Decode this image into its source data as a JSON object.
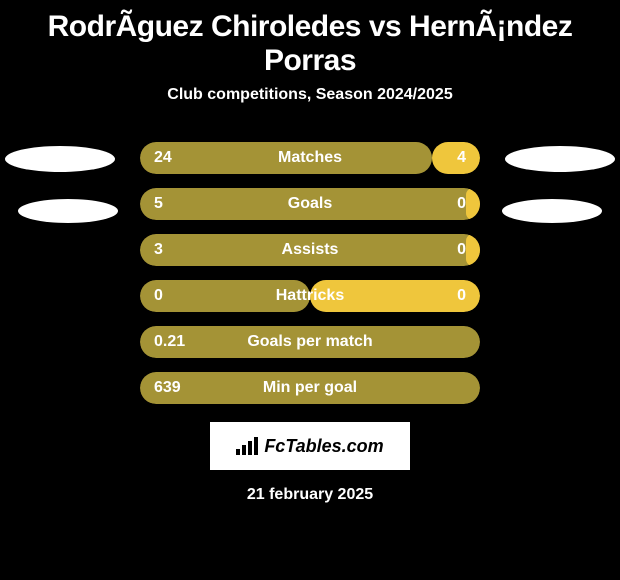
{
  "title": "RodrÃ­guez Chiroledes vs HernÃ¡ndez Porras",
  "subtitle": "Club competitions, Season 2024/2025",
  "colors": {
    "left_bar": "#a49336",
    "right_bar": "#efc63c",
    "background": "#000000",
    "ellipse": "#ffffff",
    "text": "#ffffff"
  },
  "stats": [
    {
      "label": "Matches",
      "left_val": "24",
      "right_val": "4",
      "left_pct": 86,
      "right_pct": 14
    },
    {
      "label": "Goals",
      "left_val": "5",
      "right_val": "0",
      "left_pct": 100,
      "right_pct": 4
    },
    {
      "label": "Assists",
      "left_val": "3",
      "right_val": "0",
      "left_pct": 100,
      "right_pct": 4
    },
    {
      "label": "Hattricks",
      "left_val": "0",
      "right_val": "0",
      "left_pct": 50,
      "right_pct": 50
    },
    {
      "label": "Goals per match",
      "left_val": "0.21",
      "right_val": "",
      "left_pct": 100,
      "right_pct": 0
    },
    {
      "label": "Min per goal",
      "left_val": "639",
      "right_val": "",
      "left_pct": 100,
      "right_pct": 0
    }
  ],
  "logo": {
    "text": "FcTables.com"
  },
  "date": "21 february 2025",
  "typography": {
    "title_fontsize": 30,
    "subtitle_fontsize": 16,
    "stat_fontsize": 16,
    "date_fontsize": 16
  }
}
